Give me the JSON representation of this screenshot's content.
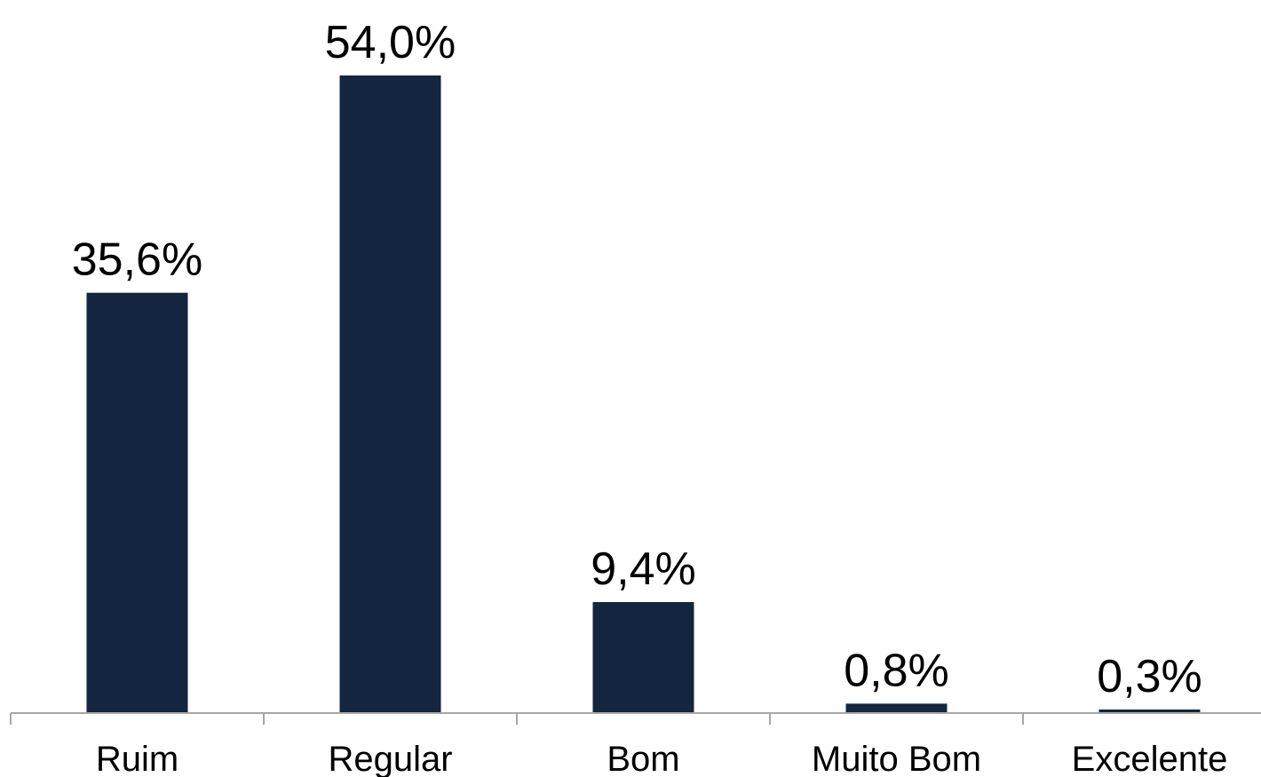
{
  "chart_data": {
    "type": "bar",
    "categories": [
      "Ruim",
      "Regular",
      "Bom",
      "Muito Bom",
      "Excelente"
    ],
    "values": [
      35.6,
      54.0,
      9.4,
      0.8,
      0.3
    ],
    "value_labels": [
      "35,6%",
      "54,0%",
      "9,4%",
      "0,8%",
      "0,3%"
    ],
    "title": "",
    "xlabel": "",
    "ylabel": "",
    "ylim": [
      0,
      54.0
    ],
    "grid": false,
    "legend": "none",
    "bar_color": "#13253f",
    "axis_color": "#a6a6a6"
  }
}
